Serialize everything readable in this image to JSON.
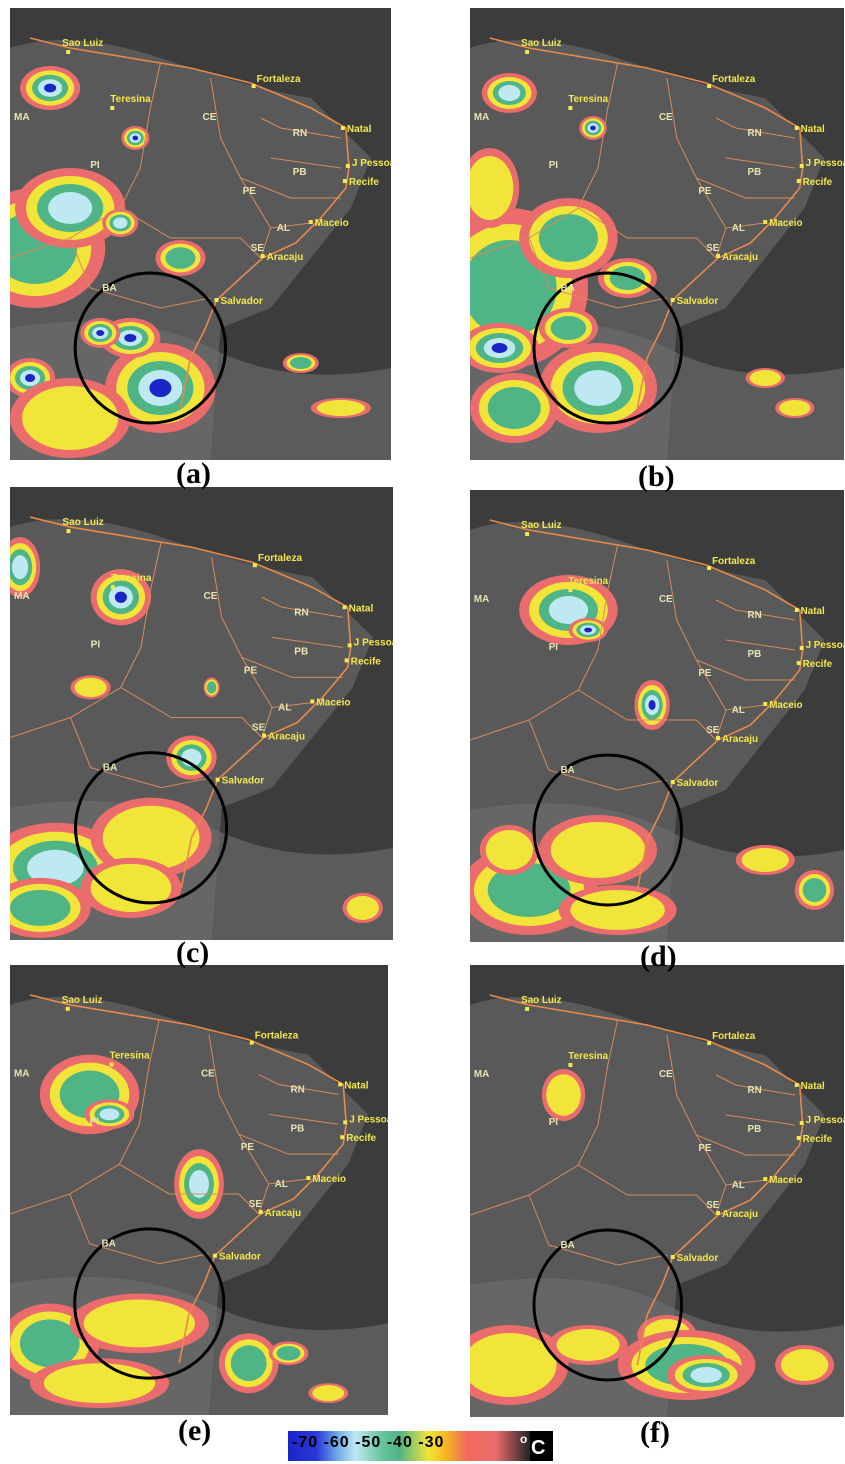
{
  "panels": [
    {
      "caption": "(a)"
    },
    {
      "caption": "(b)"
    },
    {
      "caption": "(c)"
    },
    {
      "caption": "(d)"
    },
    {
      "caption": "(e)"
    },
    {
      "caption": "(f)"
    }
  ],
  "cities": {
    "sao_luiz": "Sao Luiz",
    "fortaleza": "Fortaleza",
    "teresina": "Teresina",
    "natal": "Natal",
    "j_pessoa": "J Pessoa",
    "recife": "Recife",
    "maceio": "Maceio",
    "aracaju": "Aracaju",
    "salvador": "Salvador"
  },
  "states": {
    "ma": "MA",
    "ce": "CE",
    "rn": "RN",
    "pb": "PB",
    "pi": "PI",
    "pe": "PE",
    "al": "AL",
    "se": "SE",
    "ba": "BA"
  },
  "colorbar": {
    "ticks": "-70 -60 -50 -40 -30",
    "degree": "o",
    "unit": "C",
    "colors": [
      "#1a24c8",
      "#bfe9f2",
      "#4fb486",
      "#f2e53a",
      "#ea6c6c"
    ]
  }
}
